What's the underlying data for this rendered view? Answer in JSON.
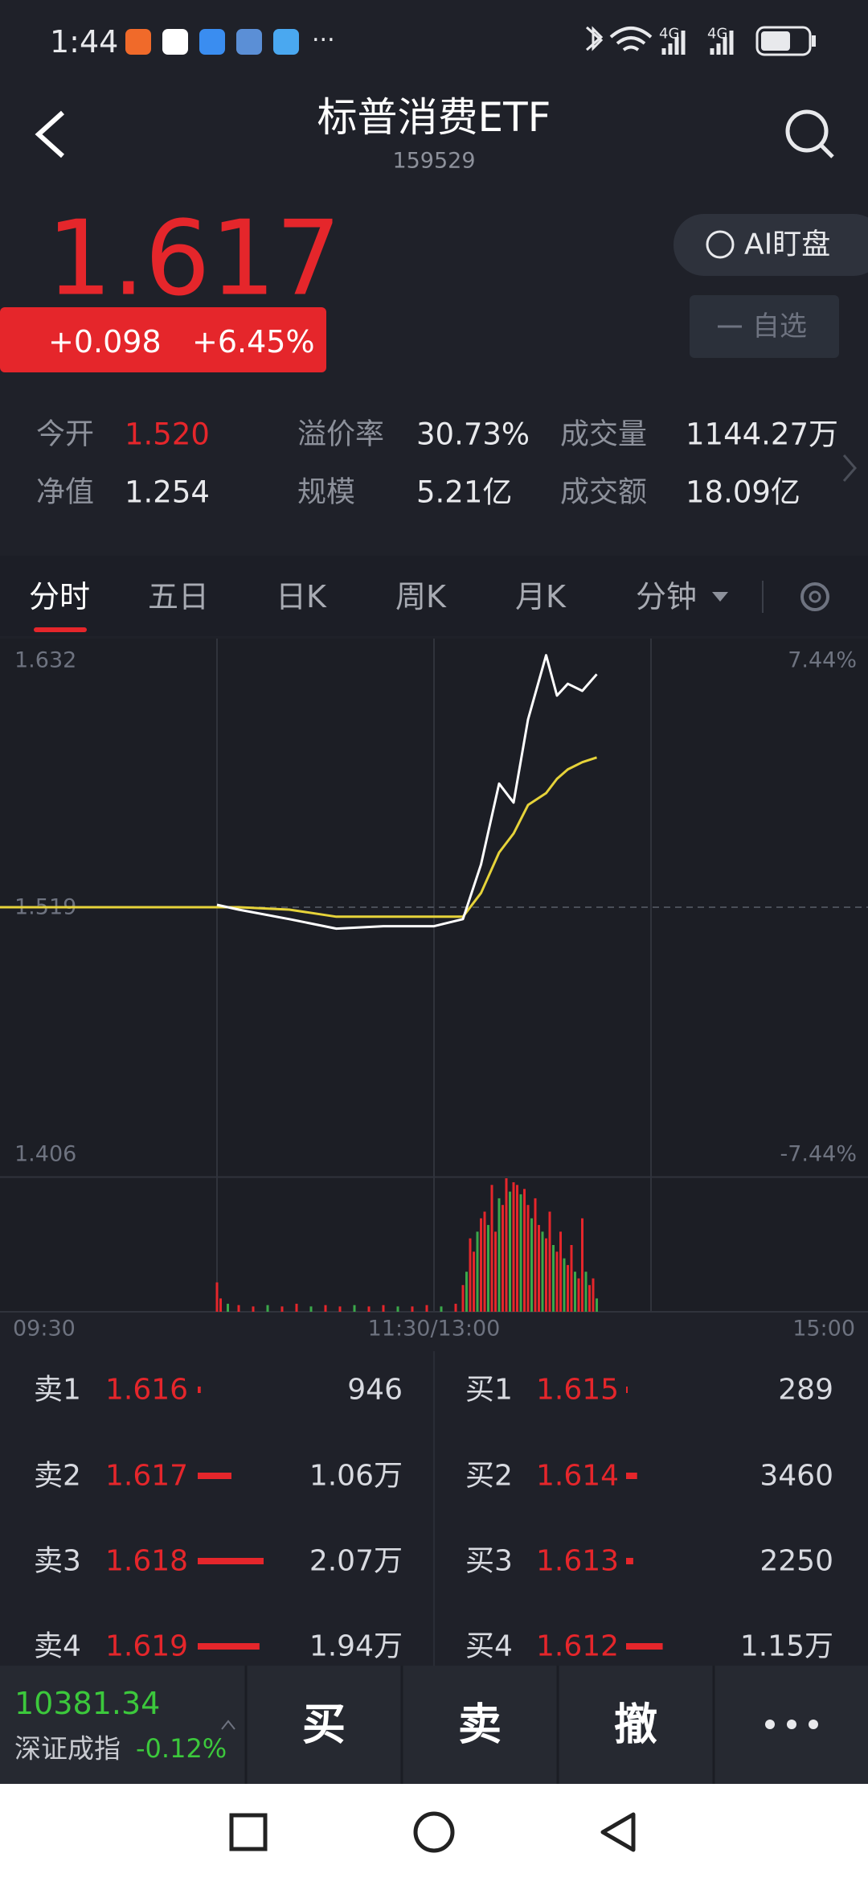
{
  "status_bar": {
    "time": "1:44",
    "more": "···",
    "network": [
      "4G",
      "4G"
    ]
  },
  "header": {
    "title": "标普消费ETF",
    "code": "159529"
  },
  "quote": {
    "price": "1.617",
    "change": "+0.098",
    "change_pct": "+6.45%",
    "ai_button": "AI盯盘",
    "watch_button": "自选"
  },
  "stats": [
    [
      {
        "label": "今开",
        "value": "1.520"
      },
      {
        "label": "溢价率",
        "value": "30.73%"
      },
      {
        "label": "成交量",
        "value": "1144.27万"
      }
    ],
    [
      {
        "label": "净值",
        "value": "1.254"
      },
      {
        "label": "规模",
        "value": "5.21亿"
      },
      {
        "label": "成交额",
        "value": "18.09亿"
      }
    ]
  ],
  "tabs": [
    "分时",
    "五日",
    "日K",
    "周K",
    "月K",
    "分钟"
  ],
  "chart_data": {
    "type": "line",
    "x": [
      0,
      60,
      66,
      80,
      93,
      106,
      120,
      128,
      133,
      138,
      142,
      146,
      151,
      154,
      157,
      161,
      165
    ],
    "xlim": [
      0,
      240
    ],
    "xticks": [
      {
        "value": 0,
        "label": "09:30"
      },
      {
        "value": 120,
        "label": "11:30/13:00"
      },
      {
        "value": 240,
        "label": "15:00"
      }
    ],
    "ylim": [
      1.406,
      1.632
    ],
    "yticks": [
      1.632,
      1.519,
      1.406
    ],
    "y2lim": [
      -7.44,
      7.44
    ],
    "y2ticks": [
      {
        "value": 7.44,
        "label": "7.44%"
      },
      {
        "value": -7.44,
        "label": "-7.44%"
      }
    ],
    "grid": true,
    "series": [
      {
        "name": "price",
        "color": "#ffffff",
        "values": [
          null,
          1.52,
          1.518,
          1.514,
          1.51,
          1.511,
          1.511,
          1.514,
          1.537,
          1.571,
          1.563,
          1.598,
          1.625,
          1.608,
          1.613,
          1.61,
          1.617
        ]
      },
      {
        "name": "average",
        "color": "#e6d33a",
        "values": [
          1.519,
          1.519,
          1.519,
          1.518,
          1.515,
          1.515,
          1.515,
          1.515,
          1.525,
          1.542,
          1.55,
          1.562,
          1.567,
          1.573,
          1.577,
          1.58,
          1.582
        ]
      }
    ],
    "volume": {
      "x": [
        60,
        61,
        63,
        66,
        70,
        74,
        78,
        82,
        86,
        90,
        94,
        98,
        102,
        106,
        110,
        114,
        118,
        122,
        126,
        128,
        129,
        130,
        131,
        132,
        133,
        134,
        135,
        136,
        137,
        138,
        139,
        140,
        141,
        142,
        143,
        144,
        145,
        146,
        147,
        148,
        149,
        150,
        151,
        152,
        153,
        154,
        155,
        156,
        157,
        158,
        159,
        160,
        161,
        162,
        163,
        164,
        165
      ],
      "values": [
        22,
        10,
        6,
        5,
        4,
        5,
        4,
        6,
        4,
        5,
        4,
        5,
        4,
        5,
        4,
        4,
        5,
        4,
        6,
        20,
        30,
        55,
        45,
        60,
        70,
        75,
        65,
        95,
        60,
        85,
        80,
        100,
        90,
        97,
        95,
        88,
        92,
        80,
        70,
        85,
        65,
        60,
        55,
        75,
        50,
        45,
        60,
        40,
        35,
        50,
        30,
        25,
        70,
        30,
        20,
        25,
        10
      ],
      "ylim": [
        0,
        100
      ],
      "up_color": "#e5262b",
      "down_color": "#3aa84a"
    }
  },
  "order_book": {
    "sell": [
      {
        "label": "卖1",
        "price": "1.616",
        "volume": 946,
        "volume_label": "946"
      },
      {
        "label": "卖2",
        "price": "1.617",
        "volume": 10600,
        "volume_label": "1.06万"
      },
      {
        "label": "卖3",
        "price": "1.618",
        "volume": 20700,
        "volume_label": "2.07万"
      },
      {
        "label": "卖4",
        "price": "1.619",
        "volume": 19400,
        "volume_label": "1.94万"
      }
    ],
    "buy": [
      {
        "label": "买1",
        "price": "1.615",
        "volume": 289,
        "volume_label": "289"
      },
      {
        "label": "买2",
        "price": "1.614",
        "volume": 3460,
        "volume_label": "3460"
      },
      {
        "label": "买3",
        "price": "1.613",
        "volume": 2250,
        "volume_label": "2250"
      },
      {
        "label": "买4",
        "price": "1.612",
        "volume": 11500,
        "volume_label": "1.15万"
      }
    ]
  },
  "index_bar": {
    "value": "10381.34",
    "name": "深证成指",
    "change": "-0.12%"
  },
  "actions": [
    "买",
    "卖",
    "撤"
  ]
}
